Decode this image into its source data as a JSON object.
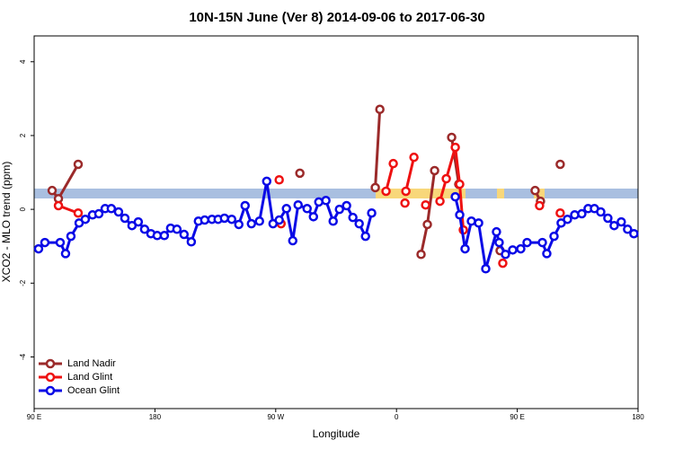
{
  "chart_data": {
    "type": "line",
    "title": "10N-15N June (Ver 8)   2014-09-06 to 2017-06-30",
    "x_label": "Longitude",
    "y_label": "XCO2 - MLO trend (ppm)",
    "xlim": [
      90,
      540
    ],
    "ylim": [
      -5.4,
      4.7
    ],
    "xticks": [
      {
        "value": 90,
        "label": "90 E"
      },
      180,
      {
        "value": 270,
        "label": "90 W"
      },
      {
        "value": 360,
        "label": "0"
      },
      {
        "value": 450,
        "label": "90 E"
      },
      {
        "value": 540,
        "label": "180"
      }
    ],
    "yticks": [
      -4,
      -2,
      0,
      2,
      4
    ],
    "legend": "bottom-left",
    "series": [
      {
        "name": "Land Nadir",
        "color": "#9b2a2a",
        "x": [
          103.4,
          108.1,
          122.8,
          null,
          288.0,
          null,
          344.2,
          347.6,
          null,
          378.3,
          383.0,
          388.4,
          null,
          401.1,
          406.4,
          null,
          437.2,
          null,
          463.3,
          467.3,
          null,
          482.0
        ],
        "values": [
          0.51,
          0.29,
          1.22,
          null,
          0.98,
          null,
          0.59,
          2.71,
          null,
          -1.22,
          -0.41,
          1.05,
          null,
          1.95,
          0.68,
          null,
          -1.12,
          null,
          0.51,
          0.22,
          null,
          1.22
        ]
      },
      {
        "name": "Land Glint",
        "color": "#ee1111",
        "x": [
          108.1,
          122.8,
          null,
          272.6,
          null,
          274.0,
          null,
          352.2,
          357.6,
          null,
          366.3,
          null,
          367.0,
          373.0,
          null,
          381.7,
          null,
          392.4,
          397.1,
          403.8,
          407.1,
          409.8,
          null,
          439.2,
          null,
          466.6,
          null,
          482.0
        ],
        "values": [
          0.1,
          -0.1,
          null,
          0.8,
          null,
          -0.39,
          null,
          0.49,
          1.24,
          null,
          0.17,
          null,
          0.49,
          1.41,
          null,
          0.12,
          null,
          0.22,
          0.83,
          1.68,
          0.68,
          -0.56,
          null,
          -1.46,
          null,
          0.1,
          null,
          -0.1
        ]
      },
      {
        "name": "Ocean Glint",
        "color": "#0a0ae6",
        "x": [
          93.3,
          98.0,
          109.4,
          113.4,
          117.4,
          123.5,
          128.1,
          133.5,
          138.2,
          142.9,
          147.5,
          152.9,
          157.6,
          162.9,
          167.6,
          172.3,
          177.0,
          181.7,
          187.0,
          191.7,
          196.4,
          201.7,
          207.1,
          212.4,
          217.1,
          222.5,
          227.1,
          231.8,
          237.2,
          242.5,
          247.2,
          251.9,
          257.9,
          263.3,
          268.0,
          272.6,
          278.0,
          282.7,
          286.7,
          293.4,
          298.1,
          302.1,
          307.4,
          312.8,
          317.5,
          322.8,
          327.5,
          332.2,
          336.9,
          341.5,
          null,
          403.8,
          407.1,
          411.1,
          415.8,
          421.2,
          426.5,
          434.5,
          436.5,
          441.2,
          446.6,
          452.6,
          457.3,
          468.7,
          472.0,
          477.4,
          482.7,
          487.4,
          492.8,
          498.1,
          502.8,
          507.5,
          512.2,
          517.5,
          522.2,
          527.5,
          532.2,
          536.9
        ],
        "values": [
          -1.07,
          -0.9,
          -0.9,
          -1.2,
          -0.73,
          -0.37,
          -0.27,
          -0.15,
          -0.12,
          0.02,
          0.02,
          -0.07,
          -0.24,
          -0.44,
          -0.34,
          -0.54,
          -0.66,
          -0.71,
          -0.71,
          -0.51,
          -0.54,
          -0.68,
          -0.88,
          -0.32,
          -0.29,
          -0.27,
          -0.27,
          -0.24,
          -0.27,
          -0.41,
          0.1,
          -0.39,
          -0.32,
          0.76,
          -0.39,
          -0.29,
          0.02,
          -0.85,
          0.12,
          0.02,
          -0.2,
          0.2,
          0.24,
          -0.32,
          0.0,
          0.1,
          -0.22,
          -0.39,
          -0.73,
          -0.1,
          null,
          0.34,
          -0.15,
          -1.07,
          -0.32,
          -0.37,
          -1.61,
          -0.61,
          -0.9,
          -1.22,
          -1.1,
          -1.07,
          -0.9,
          -0.9,
          -1.2,
          -0.73,
          -0.37,
          -0.27,
          -0.15,
          -0.12,
          0.02,
          0.02,
          -0.07,
          -0.24,
          -0.44,
          -0.34,
          -0.54,
          -0.66
        ]
      }
    ]
  }
}
